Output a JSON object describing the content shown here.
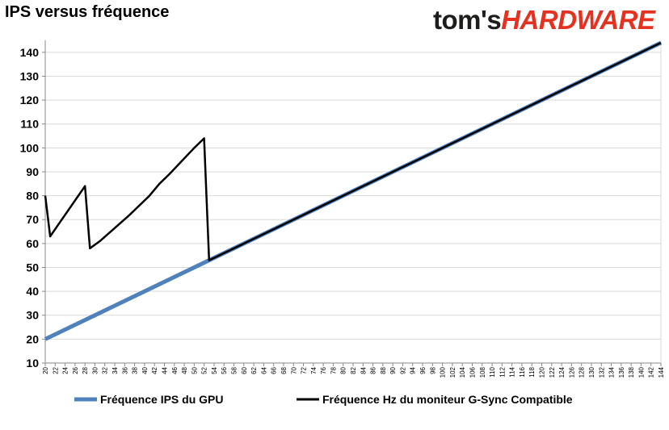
{
  "chart_data": {
    "type": "line",
    "title": "IPS versus fréquence",
    "xlabel": "",
    "ylabel": "",
    "xlim": [
      20,
      144
    ],
    "ylim": [
      10,
      145
    ],
    "y_ticks": [
      10,
      20,
      30,
      40,
      50,
      60,
      70,
      80,
      90,
      100,
      110,
      120,
      130,
      140
    ],
    "x_ticks": [
      20,
      22,
      24,
      26,
      28,
      30,
      32,
      34,
      36,
      38,
      40,
      42,
      44,
      46,
      48,
      50,
      52,
      54,
      56,
      58,
      60,
      62,
      64,
      66,
      68,
      70,
      72,
      74,
      76,
      78,
      80,
      82,
      84,
      86,
      88,
      90,
      92,
      94,
      96,
      98,
      100,
      102,
      104,
      106,
      108,
      110,
      112,
      114,
      116,
      118,
      120,
      122,
      124,
      126,
      128,
      130,
      132,
      134,
      136,
      138,
      140,
      142,
      144
    ],
    "grid": "horizontal",
    "legend_position": "bottom",
    "series": [
      {
        "name": "Fréquence IPS du GPU",
        "color": "#4f81bd",
        "x": [
          20,
          144
        ],
        "y": [
          20,
          144
        ]
      },
      {
        "name": "Fréquence Hz du moniteur G-Sync Compatible",
        "color": "#000000",
        "x": [
          20,
          21,
          23,
          28,
          29,
          31,
          37,
          39,
          41,
          43,
          45,
          50,
          52,
          53,
          144
        ],
        "y": [
          80,
          63,
          69,
          84,
          58,
          61,
          72,
          76,
          80,
          85,
          89,
          100,
          104,
          53,
          144
        ]
      }
    ]
  },
  "logo": {
    "part1": "tom's",
    "part2": "HARDWARE"
  }
}
